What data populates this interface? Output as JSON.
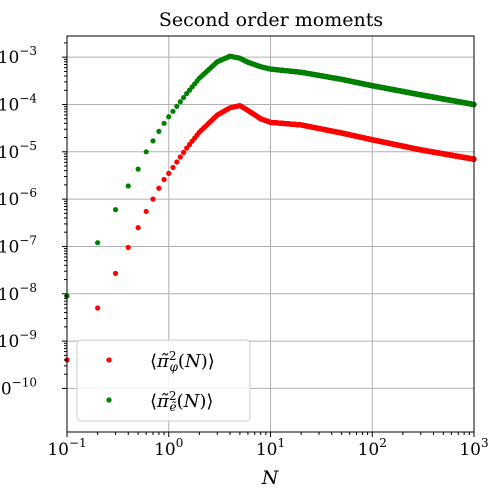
{
  "chart_data": {
    "type": "scatter",
    "title": "Second order moments",
    "xlabel": "N",
    "ylabel": "",
    "xscale": "log",
    "yscale": "log",
    "xlim": [
      0.1,
      1000
    ],
    "ylim": [
      1.2e-11,
      0.0028
    ],
    "grid": true,
    "legend_position": "bottom-left",
    "x_ticks": [
      {
        "base": "10",
        "exp": "−1"
      },
      {
        "base": "10",
        "exp": "0"
      },
      {
        "base": "10",
        "exp": "1"
      },
      {
        "base": "10",
        "exp": "2"
      },
      {
        "base": "10",
        "exp": "3"
      }
    ],
    "y_ticks": [
      {
        "base": "10",
        "exp": "−10"
      },
      {
        "base": "10",
        "exp": "−9"
      },
      {
        "base": "10",
        "exp": "−8"
      },
      {
        "base": "10",
        "exp": "−7"
      },
      {
        "base": "10",
        "exp": "−6"
      },
      {
        "base": "10",
        "exp": "−5"
      },
      {
        "base": "10",
        "exp": "−4"
      },
      {
        "base": "10",
        "exp": "−3"
      }
    ],
    "series": [
      {
        "name": "⟨π̃²_φ(N)⟩",
        "color": "#ff0000",
        "anchors": [
          [
            0.1,
            4e-10
          ],
          [
            0.2,
            5e-09
          ],
          [
            0.3,
            2.7e-08
          ],
          [
            0.4,
            9.5e-08
          ],
          [
            0.5,
            2.5e-07
          ],
          [
            0.6,
            5.5e-07
          ],
          [
            0.7,
            1e-06
          ],
          [
            0.8,
            1.7e-06
          ],
          [
            0.9,
            2.6e-06
          ],
          [
            1.0,
            3.5e-06
          ],
          [
            1.5,
            1.2e-05
          ],
          [
            2.0,
            2.6e-05
          ],
          [
            3.0,
            6e-05
          ],
          [
            4.0,
            8.5e-05
          ],
          [
            5.0,
            9.5e-05
          ],
          [
            6.0,
            7.5e-05
          ],
          [
            8.0,
            5e-05
          ],
          [
            10.0,
            4.2e-05
          ],
          [
            20.0,
            3.7e-05
          ],
          [
            50.0,
            2.5e-05
          ],
          [
            100.0,
            1.8e-05
          ],
          [
            300.0,
            1.1e-05
          ],
          [
            1000.0,
            7e-06
          ]
        ]
      },
      {
        "name": "⟨π̃²_ẽ(N)⟩",
        "color": "#008000",
        "anchors": [
          [
            0.1,
            9e-09
          ],
          [
            0.2,
            1.2e-07
          ],
          [
            0.3,
            6e-07
          ],
          [
            0.4,
            1.9e-06
          ],
          [
            0.5,
            4.3e-06
          ],
          [
            0.6,
            1e-05
          ],
          [
            0.7,
            1.7e-05
          ],
          [
            0.8,
            2.7e-05
          ],
          [
            0.9,
            4e-05
          ],
          [
            1.0,
            5.5e-05
          ],
          [
            1.5,
            0.00017
          ],
          [
            2.0,
            0.00036
          ],
          [
            3.0,
            0.0008
          ],
          [
            4.0,
            0.00105
          ],
          [
            5.0,
            0.00095
          ],
          [
            6.0,
            0.00078
          ],
          [
            8.0,
            0.00063
          ],
          [
            10.0,
            0.00056
          ],
          [
            20.0,
            0.00048
          ],
          [
            50.0,
            0.00034
          ],
          [
            100.0,
            0.00025
          ],
          [
            300.0,
            0.00016
          ],
          [
            1000.0,
            0.0001
          ]
        ]
      }
    ]
  }
}
